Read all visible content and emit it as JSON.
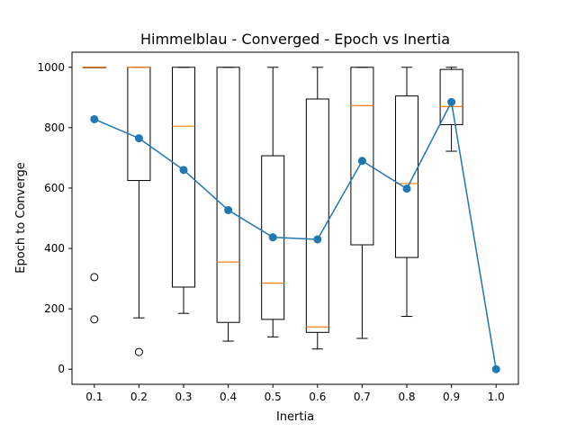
{
  "chart_data": {
    "type": "box",
    "title": "Himmelblau - Converged - Epoch vs Inertia",
    "xlabel": "Inertia",
    "ylabel": "Epoch to Converge",
    "categories": [
      "0.1",
      "0.2",
      "0.3",
      "0.4",
      "0.5",
      "0.6",
      "0.7",
      "0.8",
      "0.9",
      "1.0"
    ],
    "yticks": [
      0,
      200,
      400,
      600,
      800,
      1000
    ],
    "ylim": [
      -50,
      1050
    ],
    "grid": false,
    "legend": "none",
    "colors": {
      "box": "#000000",
      "median": "#ff7f0e",
      "mean_line": "#1f77b4",
      "outlier": "#000000"
    },
    "boxes": [
      {
        "category": "0.1",
        "whisker_low": 1000,
        "q1": 1000,
        "median": 1000,
        "q3": 1000,
        "whisker_high": 1000,
        "outliers": [
          305,
          165
        ]
      },
      {
        "category": "0.2",
        "whisker_low": 170,
        "q1": 625,
        "median": 1000,
        "q3": 1000,
        "whisker_high": 1000,
        "outliers": [
          57
        ]
      },
      {
        "category": "0.3",
        "whisker_low": 185,
        "q1": 272,
        "median": 805,
        "q3": 1000,
        "whisker_high": 1000,
        "outliers": []
      },
      {
        "category": "0.4",
        "whisker_low": 93,
        "q1": 155,
        "median": 355,
        "q3": 1000,
        "whisker_high": 1000,
        "outliers": []
      },
      {
        "category": "0.5",
        "whisker_low": 107,
        "q1": 165,
        "median": 285,
        "q3": 707,
        "whisker_high": 1000,
        "outliers": []
      },
      {
        "category": "0.6",
        "whisker_low": 67,
        "q1": 122,
        "median": 140,
        "q3": 895,
        "whisker_high": 1000,
        "outliers": []
      },
      {
        "category": "0.7",
        "whisker_low": 102,
        "q1": 412,
        "median": 873,
        "q3": 1000,
        "whisker_high": 1000,
        "outliers": []
      },
      {
        "category": "0.8",
        "whisker_low": 175,
        "q1": 370,
        "median": 615,
        "q3": 905,
        "whisker_high": 1000,
        "outliers": []
      },
      {
        "category": "0.9",
        "whisker_low": 722,
        "q1": 810,
        "median": 870,
        "q3": 993,
        "whisker_high": 1000,
        "outliers": []
      }
    ],
    "series": [
      {
        "values": [
          828,
          765,
          660,
          527,
          437,
          430,
          690,
          598,
          885,
          0
        ]
      }
    ]
  }
}
